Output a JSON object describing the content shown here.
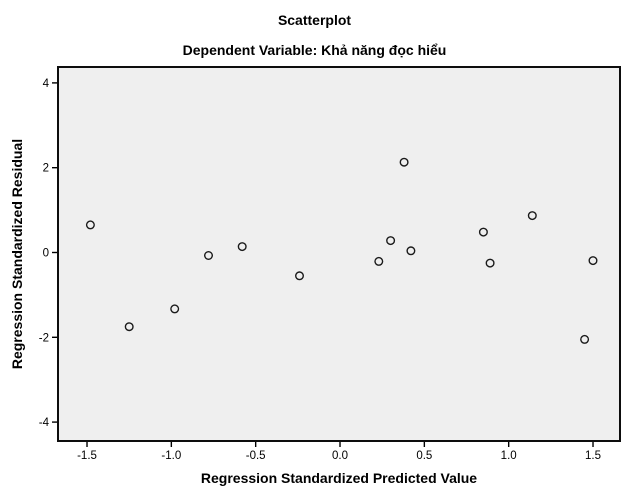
{
  "figure": {
    "title": "Scatterplot",
    "subtitle": "Dependent Variable: Khả năng đọc hiểu"
  },
  "chart_data": {
    "type": "scatter",
    "title": "Scatterplot",
    "subtitle": "Dependent Variable: Khả năng đọc hiểu",
    "xlabel": "Regression Standardized Predicted Value",
    "ylabel": "Regression Standardized Residual",
    "plot_background": "#efefef",
    "border_color": "#0d0d0d",
    "marker": {
      "shape": "open-circle",
      "radius": 3.8,
      "stroke": "#1a1a1a"
    },
    "grid": false,
    "x_axis": {
      "min": -1.672,
      "max": 1.66,
      "ticks": [
        -1.5,
        -1.0,
        -0.5,
        0.0,
        0.5,
        1.0,
        1.5
      ],
      "tick_labels": [
        "-1.5",
        "-1.0",
        "-0.5",
        "0.0",
        "0.5",
        "1.0",
        "1.5"
      ]
    },
    "y_axis": {
      "min": -4.446,
      "max": 4.375,
      "ticks": [
        4,
        2,
        0,
        -2,
        -4
      ],
      "tick_labels": [
        "4",
        "2",
        "0",
        "-2",
        "-4"
      ]
    },
    "points": [
      {
        "x": -1.48,
        "y": 0.65
      },
      {
        "x": -1.25,
        "y": -1.75
      },
      {
        "x": -0.98,
        "y": -1.33
      },
      {
        "x": -0.78,
        "y": -0.07
      },
      {
        "x": -0.58,
        "y": 0.14
      },
      {
        "x": -0.24,
        "y": -0.55
      },
      {
        "x": 0.23,
        "y": -0.21
      },
      {
        "x": 0.3,
        "y": 0.28
      },
      {
        "x": 0.38,
        "y": 2.13
      },
      {
        "x": 0.42,
        "y": 0.04
      },
      {
        "x": 0.85,
        "y": 0.48
      },
      {
        "x": 0.89,
        "y": -0.25
      },
      {
        "x": 1.14,
        "y": 0.87
      },
      {
        "x": 1.45,
        "y": -2.05
      },
      {
        "x": 1.5,
        "y": -0.19
      }
    ]
  }
}
